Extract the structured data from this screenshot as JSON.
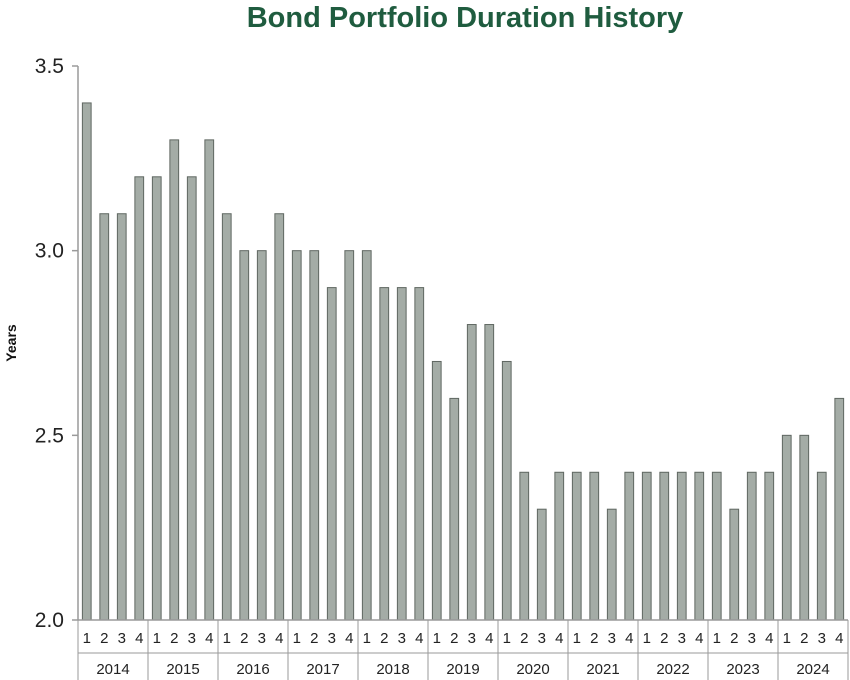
{
  "chart_data": {
    "type": "bar",
    "title": "Bond Portfolio Duration History",
    "xlabel": "",
    "ylabel": "Years",
    "ylim": [
      2.0,
      3.5
    ],
    "yticks": [
      "2.0",
      "2.5",
      "3.0",
      "3.5"
    ],
    "years": [
      "2014",
      "2015",
      "2016",
      "2017",
      "2018",
      "2019",
      "2020",
      "2021",
      "2022",
      "2023",
      "2024"
    ],
    "quarters": [
      "1",
      "2",
      "3",
      "4"
    ],
    "values": [
      3.4,
      3.1,
      3.1,
      3.2,
      3.2,
      3.3,
      3.2,
      3.3,
      3.1,
      3.0,
      3.0,
      3.1,
      3.0,
      3.0,
      2.9,
      3.0,
      3.0,
      2.9,
      2.9,
      2.9,
      2.7,
      2.6,
      2.8,
      2.8,
      2.7,
      2.4,
      2.3,
      2.4,
      2.4,
      2.4,
      2.3,
      2.4,
      2.4,
      2.4,
      2.4,
      2.4,
      2.4,
      2.3,
      2.4,
      2.4,
      2.5,
      2.5,
      2.4,
      2.6
    ],
    "colors": {
      "title": "#1f5c3f",
      "bar_fill": "#a4aca6",
      "bar_stroke": "#5f6761",
      "axis": "#9a9a9a"
    },
    "grid": false,
    "legend": "none"
  }
}
